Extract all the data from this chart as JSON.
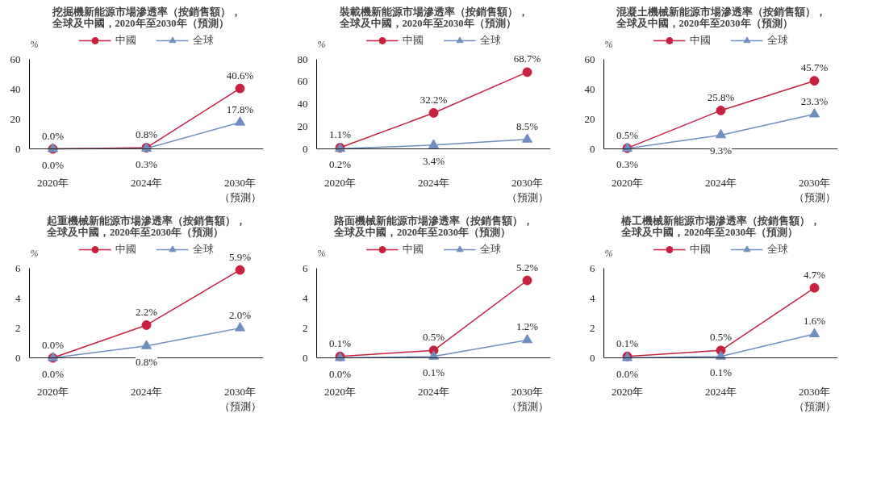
{
  "chart_data": [
    {
      "type": "line",
      "title": "挖掘機新能源市場滲透率（按銷售額），全球及中國，2020年至2030年（預測）",
      "ylabel": "%",
      "categories": [
        "2020年",
        "2024年",
        "2030年（預測）"
      ],
      "ylim": [
        0,
        60
      ],
      "yticks": [
        0,
        20,
        40,
        60
      ],
      "legend": "top",
      "grid": false,
      "series": [
        {
          "name": "中國",
          "color": "#c8203f",
          "marker": "circle",
          "values": [
            0.0,
            0.8,
            40.6
          ],
          "value_labels": [
            "0.0%",
            "0.8%",
            "40.6%"
          ]
        },
        {
          "name": "全球",
          "color": "#6f8fc0",
          "marker": "triangle",
          "values": [
            0.0,
            0.3,
            17.8
          ],
          "value_labels": [
            "0.0%",
            "0.3%",
            "17.8%"
          ]
        }
      ]
    },
    {
      "type": "line",
      "title": "裝載機新能源市場滲透率（按銷售額），全球及中國，2020年至2030年（預測）",
      "ylabel": "%",
      "categories": [
        "2020年",
        "2024年",
        "2030年（預測）"
      ],
      "ylim": [
        0,
        80
      ],
      "yticks": [
        0,
        20,
        40,
        60,
        80
      ],
      "legend": "top",
      "grid": false,
      "series": [
        {
          "name": "中國",
          "color": "#c8203f",
          "marker": "circle",
          "values": [
            1.1,
            32.2,
            68.7
          ],
          "value_labels": [
            "1.1%",
            "32.2%",
            "68.7%"
          ]
        },
        {
          "name": "全球",
          "color": "#6f8fc0",
          "marker": "triangle",
          "values": [
            0.2,
            3.4,
            8.5
          ],
          "value_labels": [
            "0.2%",
            "3.4%",
            "8.5%"
          ]
        }
      ]
    },
    {
      "type": "line",
      "title": "混凝土機械新能源市場滲透率（按銷售額），全球及中國，2020年至2030年（預測）",
      "ylabel": "%",
      "categories": [
        "2020年",
        "2024年",
        "2030年（預測）"
      ],
      "ylim": [
        0,
        60
      ],
      "yticks": [
        0,
        20,
        40,
        60
      ],
      "legend": "top",
      "grid": false,
      "series": [
        {
          "name": "中國",
          "color": "#c8203f",
          "marker": "circle",
          "values": [
            0.5,
            25.8,
            45.7
          ],
          "value_labels": [
            "0.5%",
            "25.8%",
            "45.7%"
          ]
        },
        {
          "name": "全球",
          "color": "#6f8fc0",
          "marker": "triangle",
          "values": [
            0.3,
            9.3,
            23.3
          ],
          "value_labels": [
            "0.3%",
            "9.3%",
            "23.3%"
          ]
        }
      ]
    },
    {
      "type": "line",
      "title": "起重機械新能源市場滲透率（按銷售額），全球及中國，2020年至2030年（預測）",
      "ylabel": "%",
      "categories": [
        "2020年",
        "2024年",
        "2030年（預測）"
      ],
      "ylim": [
        0,
        6
      ],
      "yticks": [
        0,
        2,
        4,
        6
      ],
      "legend": "top",
      "grid": false,
      "series": [
        {
          "name": "中國",
          "color": "#c8203f",
          "marker": "circle",
          "values": [
            0.0,
            2.2,
            5.9
          ],
          "value_labels": [
            "0.0%",
            "2.2%",
            "5.9%"
          ]
        },
        {
          "name": "全球",
          "color": "#6f8fc0",
          "marker": "triangle",
          "values": [
            0.0,
            0.8,
            2.0
          ],
          "value_labels": [
            "0.0%",
            "0.8%",
            "2.0%"
          ]
        }
      ]
    },
    {
      "type": "line",
      "title": "路面機械新能源市場滲透率（按銷售額），全球及中國，2020年至2030年（預測）",
      "ylabel": "%",
      "categories": [
        "2020年",
        "2024年",
        "2030年（預測）"
      ],
      "ylim": [
        0,
        6
      ],
      "yticks": [
        0,
        2,
        4,
        6
      ],
      "legend": "top",
      "grid": false,
      "series": [
        {
          "name": "中國",
          "color": "#c8203f",
          "marker": "circle",
          "values": [
            0.1,
            0.5,
            5.2
          ],
          "value_labels": [
            "0.1%",
            "0.5%",
            "5.2%"
          ]
        },
        {
          "name": "全球",
          "color": "#6f8fc0",
          "marker": "triangle",
          "values": [
            0.0,
            0.1,
            1.2
          ],
          "value_labels": [
            "0.0%",
            "0.1%",
            "1.2%"
          ]
        }
      ]
    },
    {
      "type": "line",
      "title": "樁工機械新能源市場滲透率（按銷售額），全球及中國，2020年至2030年（預測）",
      "ylabel": "%",
      "categories": [
        "2020年",
        "2024年",
        "2030年（預測）"
      ],
      "ylim": [
        0,
        6
      ],
      "yticks": [
        0,
        2,
        4,
        6
      ],
      "legend": "top",
      "grid": false,
      "series": [
        {
          "name": "中國",
          "color": "#c8203f",
          "marker": "circle",
          "values": [
            0.1,
            0.5,
            4.7
          ],
          "value_labels": [
            "0.1%",
            "0.5%",
            "4.7%"
          ]
        },
        {
          "name": "全球",
          "color": "#6f8fc0",
          "marker": "triangle",
          "values": [
            0.0,
            0.1,
            1.6
          ],
          "value_labels": [
            "0.0%",
            "0.1%",
            "1.6%"
          ]
        }
      ]
    }
  ]
}
